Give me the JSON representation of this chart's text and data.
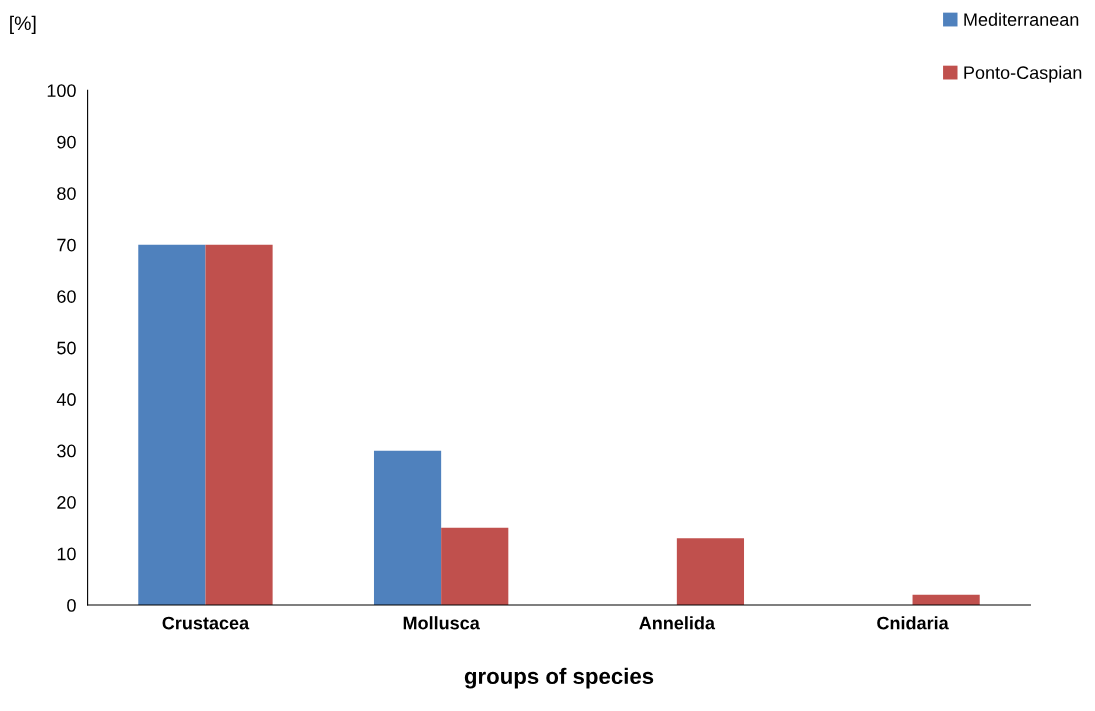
{
  "chart_data": {
    "type": "bar",
    "xlabel": "groups of species",
    "ylabel": "[%]",
    "categories": [
      "Crustacea",
      "Mollusca",
      "Annelida",
      "Cnidaria"
    ],
    "series": [
      {
        "name": "Mediterranean",
        "color": "#4f81bd",
        "values": [
          70,
          30,
          0,
          0
        ]
      },
      {
        "name": "Ponto-Caspian",
        "color": "#c0504d",
        "values": [
          70,
          15,
          13,
          2
        ]
      }
    ],
    "ylim": [
      0,
      100
    ],
    "yticks": [
      0,
      10,
      20,
      30,
      40,
      50,
      60,
      70,
      80,
      90,
      100
    ],
    "grid": false,
    "legend": "top right"
  }
}
